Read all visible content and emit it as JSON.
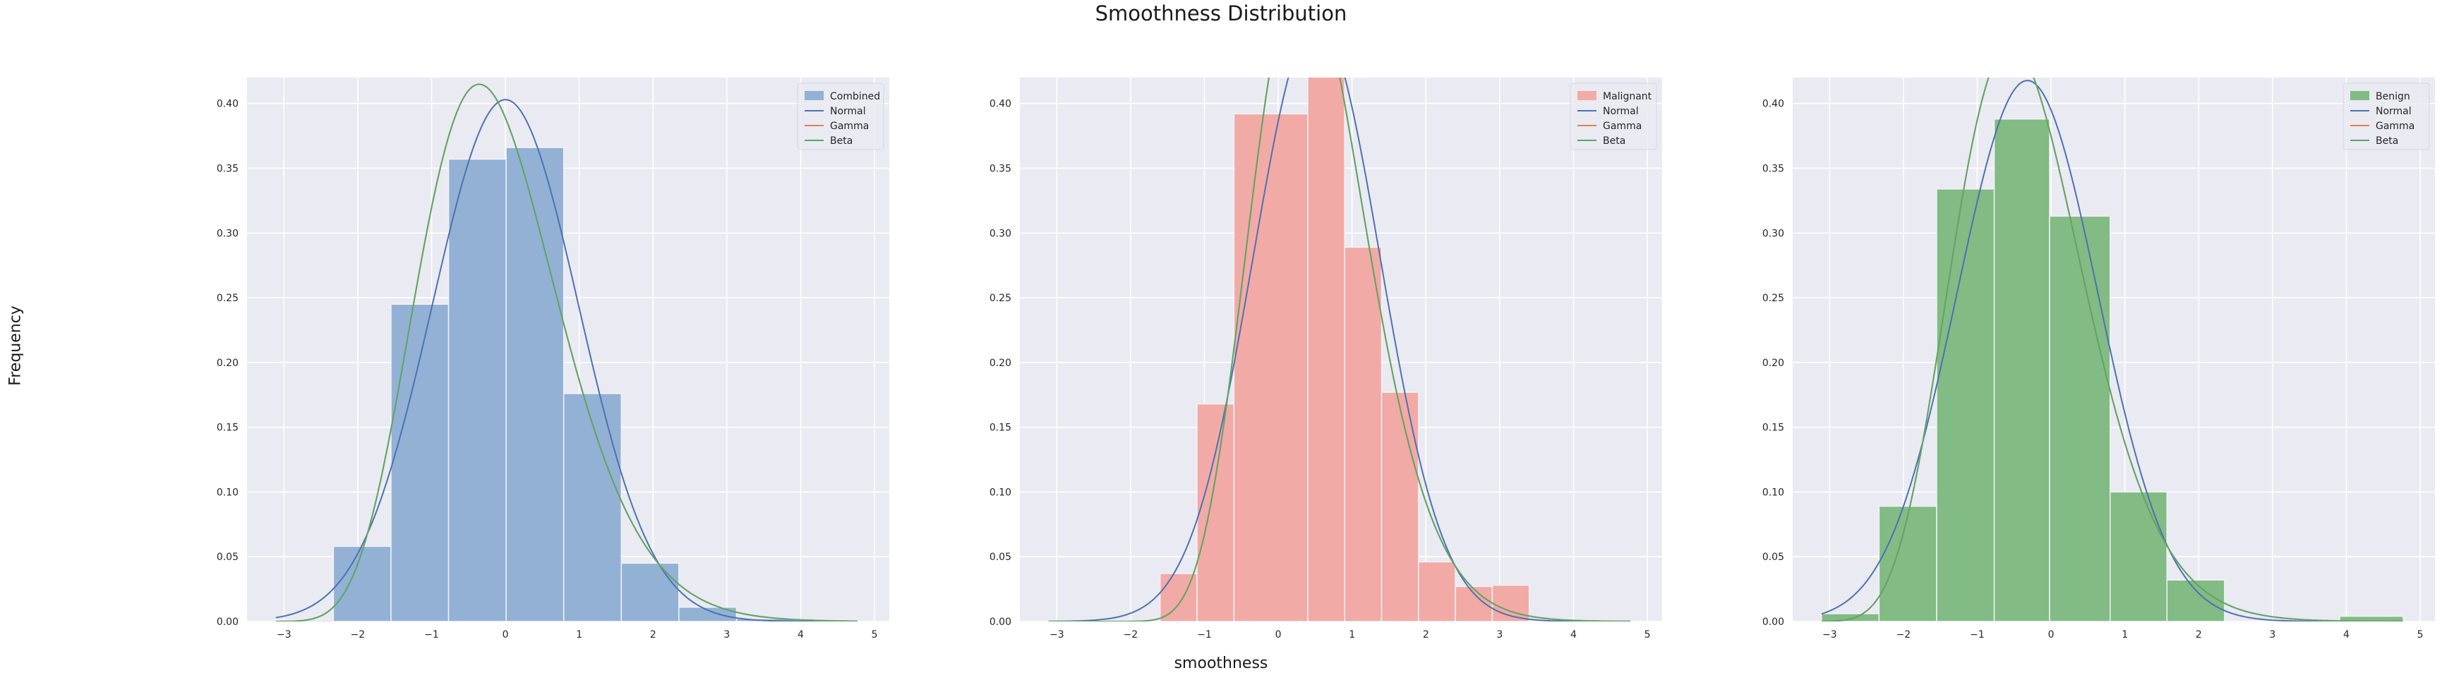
{
  "figure": {
    "title": "Smoothness Distribution",
    "ylabel": "Frequency",
    "xlabel": "smoothness"
  },
  "colors": {
    "background": "#eaeaf2",
    "grid": "#ffffff",
    "normal": "#4c72b0",
    "gamma": "#dd8452",
    "beta": "#55a868"
  },
  "chart_data": [
    {
      "type": "bar",
      "panel": "Combined",
      "bar_color": "#92b1d5",
      "legend": [
        "Combined",
        "Normal",
        "Gamma",
        "Beta"
      ],
      "legend_placement": "top-right",
      "grid": true,
      "xlim": [
        -3.5,
        5.2
      ],
      "ylim": [
        0,
        0.42
      ],
      "xticks": [
        -3,
        -2,
        -1,
        0,
        1,
        2,
        3,
        4,
        5
      ],
      "yticks": [
        0.0,
        0.05,
        0.1,
        0.15,
        0.2,
        0.25,
        0.3,
        0.35,
        0.4
      ],
      "bins": [
        {
          "left": -3.11,
          "right": -2.33,
          "height": 0.001
        },
        {
          "left": -2.33,
          "right": -1.55,
          "height": 0.058
        },
        {
          "left": -1.55,
          "right": -0.77,
          "height": 0.245
        },
        {
          "left": -0.77,
          "right": 0.01,
          "height": 0.357
        },
        {
          "left": 0.01,
          "right": 0.79,
          "height": 0.366
        },
        {
          "left": 0.79,
          "right": 1.57,
          "height": 0.176
        },
        {
          "left": 1.57,
          "right": 2.35,
          "height": 0.045
        },
        {
          "left": 2.35,
          "right": 3.13,
          "height": 0.011
        },
        {
          "left": 3.13,
          "right": 3.91,
          "height": 0.002
        },
        {
          "left": 3.91,
          "right": 4.77,
          "height": 0.001
        }
      ],
      "curves": {
        "normal": {
          "mu": 0.0,
          "sigma": 0.99
        },
        "gamma": {
          "shape": 14.0,
          "loc": -3.8,
          "scale": 0.265
        },
        "beta": {
          "shape": 14.0,
          "loc": -3.8,
          "scale": 0.265
        }
      },
      "curve_x_range": [
        -3.11,
        4.77
      ]
    },
    {
      "type": "bar",
      "panel": "Malignant",
      "bar_color": "#f2aaa6",
      "legend": [
        "Malignant",
        "Normal",
        "Gamma",
        "Beta"
      ],
      "legend_placement": "top-right",
      "grid": true,
      "xlim": [
        -3.5,
        5.2
      ],
      "ylim": [
        0,
        0.42
      ],
      "xticks": [
        -3,
        -2,
        -1,
        0,
        1,
        2,
        3,
        4,
        5
      ],
      "yticks": [
        0.0,
        0.05,
        0.1,
        0.15,
        0.2,
        0.25,
        0.3,
        0.35,
        0.4
      ],
      "bins": [
        {
          "left": -1.6,
          "right": -1.1,
          "height": 0.037
        },
        {
          "left": -1.1,
          "right": -0.6,
          "height": 0.168
        },
        {
          "left": -0.6,
          "right": 0.4,
          "height": 0.392
        },
        {
          "left": 0.4,
          "right": 0.9,
          "height": 0.425
        },
        {
          "left": 0.9,
          "right": 1.4,
          "height": 0.289
        },
        {
          "left": 1.4,
          "right": 1.9,
          "height": 0.177
        },
        {
          "left": 1.9,
          "right": 2.4,
          "height": 0.046
        },
        {
          "left": 2.4,
          "right": 2.9,
          "height": 0.027
        },
        {
          "left": 2.9,
          "right": 3.4,
          "height": 0.028
        }
      ],
      "curves": {
        "normal": {
          "mu": 0.52,
          "sigma": 0.86
        },
        "gamma": {
          "shape": 18.0,
          "loc": -2.9,
          "scale": 0.19
        },
        "beta": {
          "shape": 18.0,
          "loc": -2.9,
          "scale": 0.19
        }
      },
      "curve_x_range": [
        -3.11,
        4.77
      ]
    },
    {
      "type": "bar",
      "panel": "Benign",
      "bar_color": "#82bb84",
      "legend": [
        "Benign",
        "Normal",
        "Gamma",
        "Beta"
      ],
      "legend_placement": "top-right",
      "grid": true,
      "xlim": [
        -3.5,
        5.2
      ],
      "ylim": [
        0,
        0.42
      ],
      "xticks": [
        -3,
        -2,
        -1,
        0,
        1,
        2,
        3,
        4,
        5
      ],
      "yticks": [
        0.0,
        0.05,
        0.1,
        0.15,
        0.2,
        0.25,
        0.3,
        0.35,
        0.4
      ],
      "bins": [
        {
          "left": -3.11,
          "right": -2.33,
          "height": 0.006
        },
        {
          "left": -2.33,
          "right": -1.55,
          "height": 0.089
        },
        {
          "left": -1.55,
          "right": -0.77,
          "height": 0.334
        },
        {
          "left": -0.77,
          "right": -0.02,
          "height": 0.388
        },
        {
          "left": -0.02,
          "right": 0.8,
          "height": 0.313
        },
        {
          "left": 0.8,
          "right": 1.57,
          "height": 0.1
        },
        {
          "left": 1.57,
          "right": 2.35,
          "height": 0.032
        },
        {
          "left": 2.35,
          "right": 3.13,
          "height": 0.0
        },
        {
          "left": 3.13,
          "right": 3.91,
          "height": 0.0
        },
        {
          "left": 3.91,
          "right": 4.77,
          "height": 0.004
        }
      ],
      "curves": {
        "normal": {
          "mu": -0.32,
          "sigma": 0.955
        },
        "gamma": {
          "shape": 16.0,
          "loc": -4.0,
          "scale": 0.23
        },
        "beta": {
          "shape": 16.0,
          "loc": -4.0,
          "scale": 0.23
        }
      },
      "curve_x_range": [
        -3.11,
        4.77
      ]
    }
  ]
}
